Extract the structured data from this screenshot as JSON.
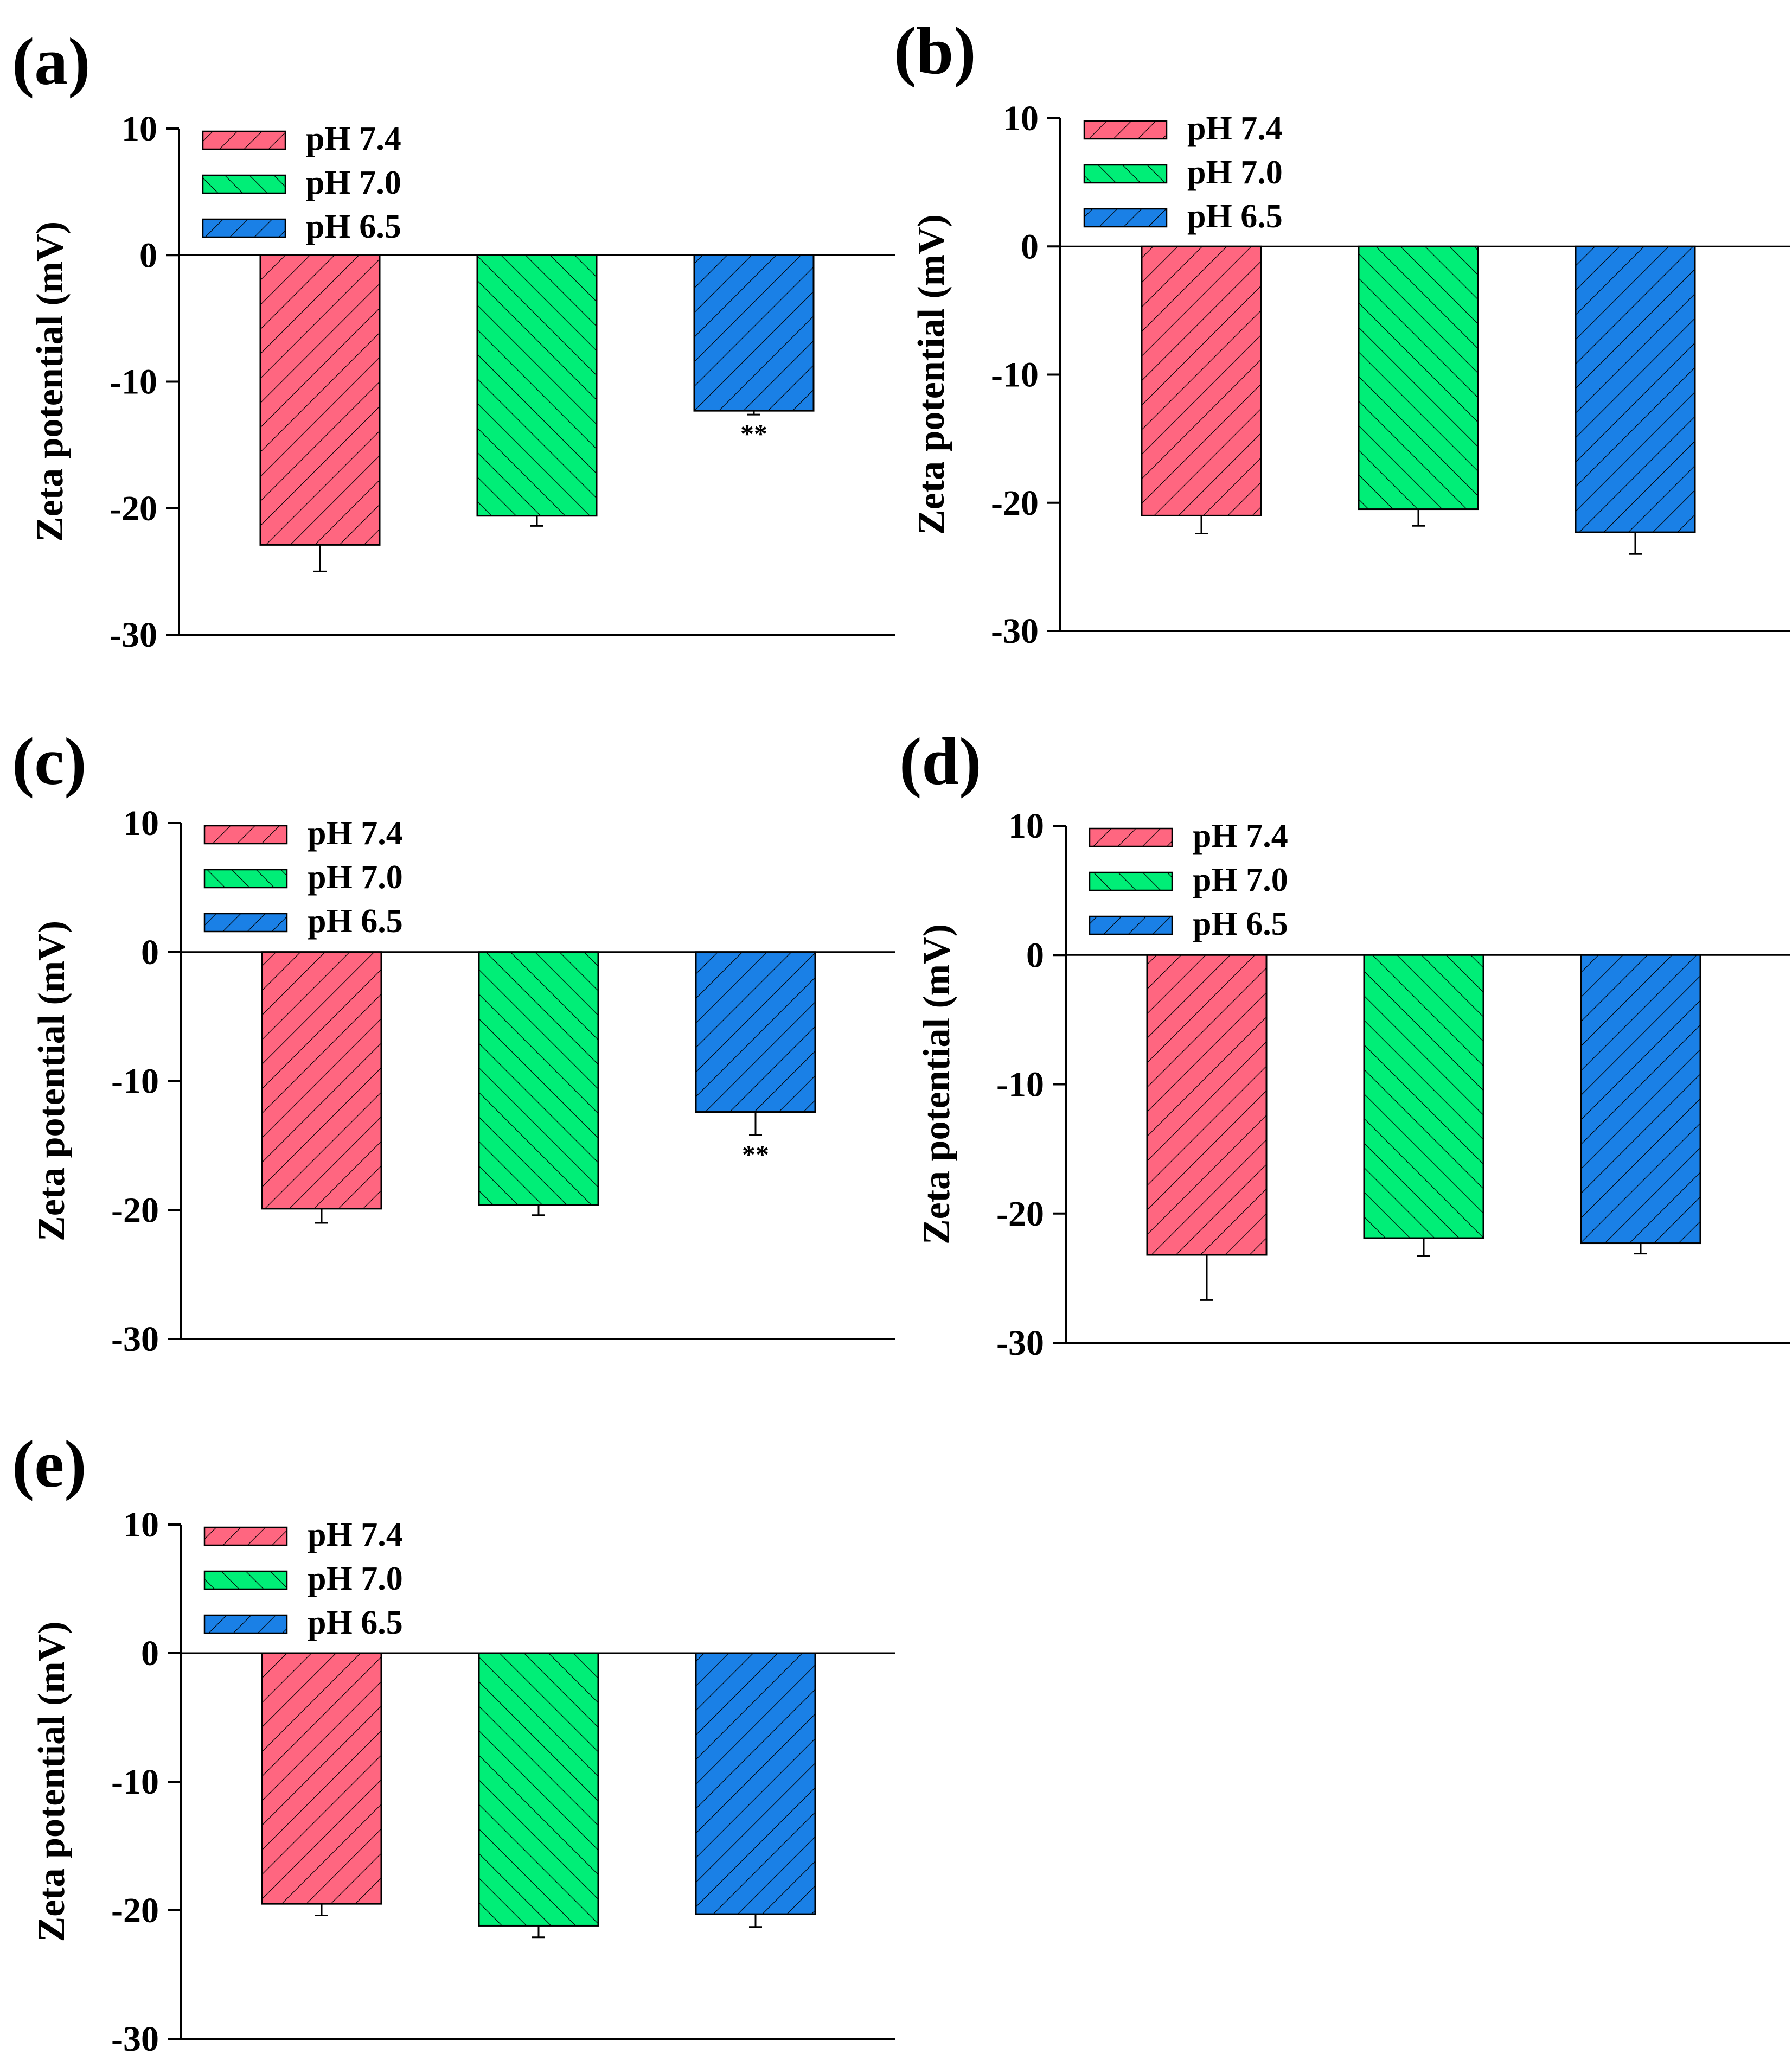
{
  "figure": {
    "panels": [
      {
        "label": "(a)",
        "chart_data": {
          "type": "bar",
          "title": "",
          "xlabel": "",
          "ylabel": "Zeta potential (mV)",
          "ylim": [
            -30,
            10
          ],
          "yticks": [
            "10",
            "0",
            "-10",
            "-20",
            "-30"
          ],
          "legend": "top-left",
          "grid": false,
          "series": [
            {
              "name": "pH 7.4",
              "value": -22.9,
              "error": 2.1,
              "color": "#ff6680",
              "hatch": "backslash",
              "annotation": ""
            },
            {
              "name": "pH 7.0",
              "value": -20.6,
              "error": 0.8,
              "color": "#00ee77",
              "hatch": "slash",
              "annotation": ""
            },
            {
              "name": "pH 6.5",
              "value": -12.3,
              "error": 0.3,
              "color": "#1a80e6",
              "hatch": "backslash",
              "annotation": "**"
            }
          ]
        }
      },
      {
        "label": "(b)",
        "chart_data": {
          "type": "bar",
          "title": "",
          "xlabel": "",
          "ylabel": "Zeta potential (mV)",
          "ylim": [
            -30,
            10
          ],
          "yticks": [
            "10",
            "0",
            "-10",
            "-20",
            "-30"
          ],
          "legend": "top-left",
          "grid": false,
          "series": [
            {
              "name": "pH 7.4",
              "value": -21.0,
              "error": 1.4,
              "color": "#ff6680",
              "hatch": "backslash",
              "annotation": ""
            },
            {
              "name": "pH 7.0",
              "value": -20.5,
              "error": 1.3,
              "color": "#00ee77",
              "hatch": "slash",
              "annotation": ""
            },
            {
              "name": "pH 6.5",
              "value": -22.3,
              "error": 1.7,
              "color": "#1a80e6",
              "hatch": "backslash",
              "annotation": ""
            }
          ]
        }
      },
      {
        "label": "(c)",
        "chart_data": {
          "type": "bar",
          "title": "",
          "xlabel": "",
          "ylabel": "Zeta potential (mV)",
          "ylim": [
            -30,
            10
          ],
          "yticks": [
            "10",
            "0",
            "-10",
            "-20",
            "-30"
          ],
          "legend": "top-left",
          "grid": false,
          "series": [
            {
              "name": "pH 7.4",
              "value": -19.9,
              "error": 1.1,
              "color": "#ff6680",
              "hatch": "backslash",
              "annotation": ""
            },
            {
              "name": "pH 7.0",
              "value": -19.6,
              "error": 0.8,
              "color": "#00ee77",
              "hatch": "slash",
              "annotation": ""
            },
            {
              "name": "pH 6.5",
              "value": -12.4,
              "error": 1.8,
              "color": "#1a80e6",
              "hatch": "backslash",
              "annotation": "**"
            }
          ]
        }
      },
      {
        "label": "(d)",
        "chart_data": {
          "type": "bar",
          "title": "",
          "xlabel": "",
          "ylabel": "Zeta potential (mV)",
          "ylim": [
            -30,
            10
          ],
          "yticks": [
            "10",
            "0",
            "-10",
            "-20",
            "-30"
          ],
          "legend": "top-left",
          "grid": false,
          "series": [
            {
              "name": "pH 7.4",
              "value": -23.2,
              "error": 3.5,
              "color": "#ff6680",
              "hatch": "backslash",
              "annotation": ""
            },
            {
              "name": "pH 7.0",
              "value": -21.9,
              "error": 1.4,
              "color": "#00ee77",
              "hatch": "slash",
              "annotation": ""
            },
            {
              "name": "pH 6.5",
              "value": -22.3,
              "error": 0.8,
              "color": "#1a80e6",
              "hatch": "backslash",
              "annotation": ""
            }
          ]
        }
      },
      {
        "label": "(e)",
        "chart_data": {
          "type": "bar",
          "title": "",
          "xlabel": "",
          "ylabel": "Zeta potential (mV)",
          "ylim": [
            -30,
            10
          ],
          "yticks": [
            "10",
            "0",
            "-10",
            "-20",
            "-30"
          ],
          "legend": "top-left",
          "grid": false,
          "series": [
            {
              "name": "pH 7.4",
              "value": -19.5,
              "error": 0.9,
              "color": "#ff6680",
              "hatch": "backslash",
              "annotation": ""
            },
            {
              "name": "pH 7.0",
              "value": -21.2,
              "error": 0.9,
              "color": "#00ee77",
              "hatch": "slash",
              "annotation": ""
            },
            {
              "name": "pH 6.5",
              "value": -20.3,
              "error": 1.0,
              "color": "#1a80e6",
              "hatch": "backslash",
              "annotation": ""
            }
          ]
        }
      }
    ]
  }
}
